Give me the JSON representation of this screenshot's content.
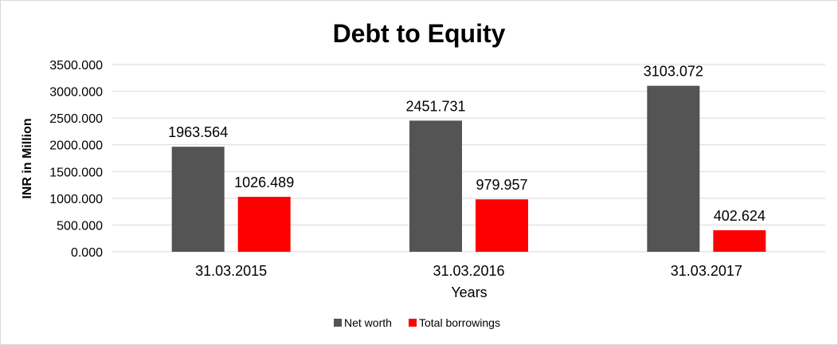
{
  "chart_data": {
    "type": "bar",
    "title": "Debt to Equity",
    "xlabel": "Years",
    "ylabel": "INR in Million",
    "categories": [
      "31.03.2015",
      "31.03.2016",
      "31.03.2017"
    ],
    "series": [
      {
        "name": "Net worth",
        "color": "#545454",
        "values": [
          1963.564,
          2451.731,
          3103.072
        ],
        "labels": [
          "1963.564",
          "2451.731",
          "3103.072"
        ]
      },
      {
        "name": "Total borrowings",
        "color": "#ff0000",
        "values": [
          1026.489,
          979.957,
          402.624
        ],
        "labels": [
          "1026.489",
          "979.957",
          "402.624"
        ]
      }
    ],
    "ylim": [
      0,
      3500
    ],
    "yticks": [
      0,
      500,
      1000,
      1500,
      2000,
      2500,
      3000,
      3500
    ],
    "ytick_labels": [
      "0.000",
      "500.000",
      "1000.000",
      "1500.000",
      "2000.000",
      "2500.000",
      "3000.000",
      "3500.000"
    ],
    "grid": true,
    "legend_position": "bottom"
  }
}
